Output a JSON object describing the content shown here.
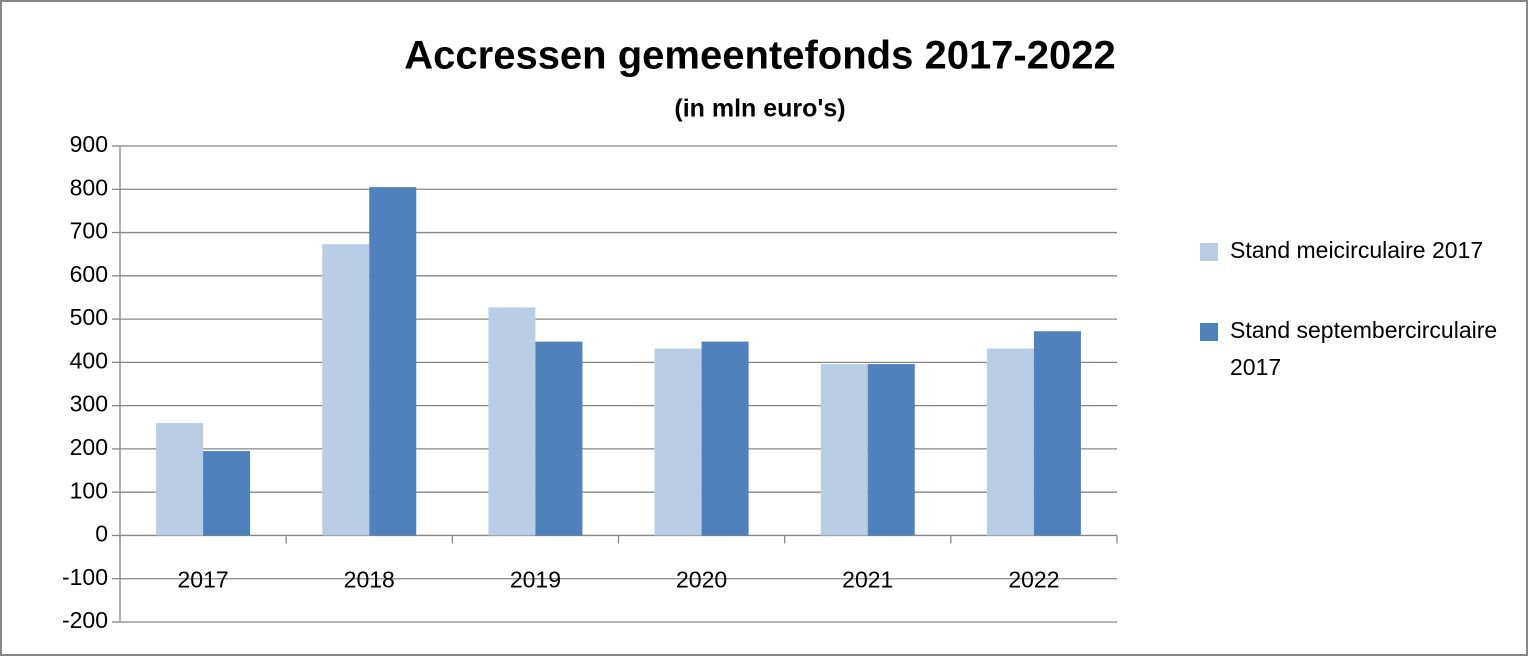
{
  "chart_data": {
    "type": "bar",
    "title": "Accressen gemeentefonds 2017-2022",
    "subtitle": "(in mln euro's)",
    "categories": [
      "2017",
      "2018",
      "2019",
      "2020",
      "2021",
      "2022"
    ],
    "series": [
      {
        "name": "Stand meicirculaire 2017",
        "color": "#b9cde5",
        "values": [
          260,
          673,
          527,
          432,
          396,
          432
        ]
      },
      {
        "name": "Stand septembercirculaire 2017",
        "color": "#4f81bd",
        "values": [
          195,
          805,
          448,
          448,
          396,
          472
        ]
      }
    ],
    "ylim": [
      -200,
      900
    ],
    "yticks": [
      -200,
      -100,
      0,
      100,
      200,
      300,
      400,
      500,
      600,
      700,
      800,
      900
    ],
    "grid": true,
    "legend": "right"
  }
}
